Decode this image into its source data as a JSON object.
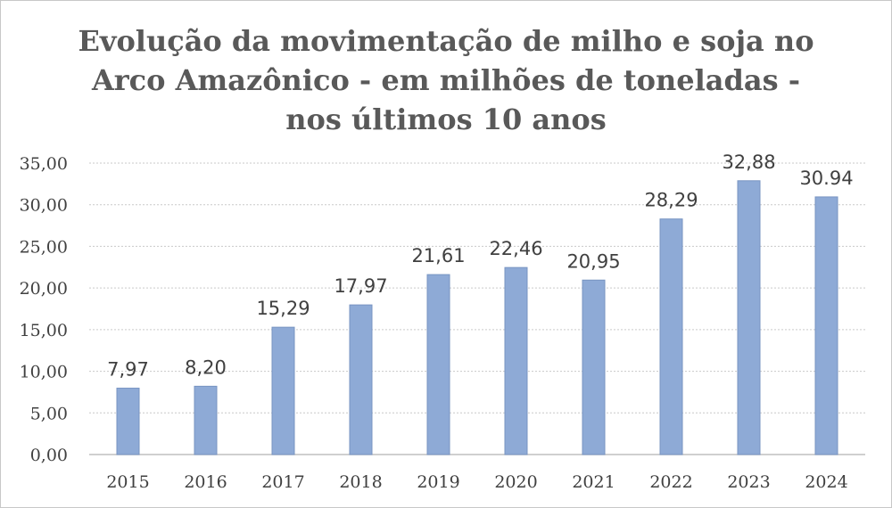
{
  "chart_data": {
    "type": "bar",
    "title_lines": [
      "Evolução da movimentação de milho e soja no",
      "Arco Amazônico - em milhões de toneladas -",
      "nos últimos 10 anos"
    ],
    "categories": [
      "2015",
      "2016",
      "2017",
      "2018",
      "2019",
      "2020",
      "2021",
      "2022",
      "2023",
      "2024"
    ],
    "values": [
      7.97,
      8.2,
      15.29,
      17.97,
      21.61,
      22.46,
      20.95,
      28.29,
      32.88,
      30.94
    ],
    "data_labels": [
      "7,97",
      "8,20",
      "15,29",
      "17,97",
      "21,61",
      "22,46",
      "20,95",
      "28,29",
      "32,88",
      "30.94"
    ],
    "y_ticks": [
      "0,00",
      "5,00",
      "10,00",
      "15,00",
      "20,00",
      "25,00",
      "30,00",
      "35,00"
    ],
    "ylim": [
      0,
      35
    ],
    "grid": true,
    "bar_color": "#8eaad6",
    "bar_edge_color": "#7894c2",
    "grid_color": "#c9c9c9",
    "xlabel": "",
    "ylabel": ""
  }
}
